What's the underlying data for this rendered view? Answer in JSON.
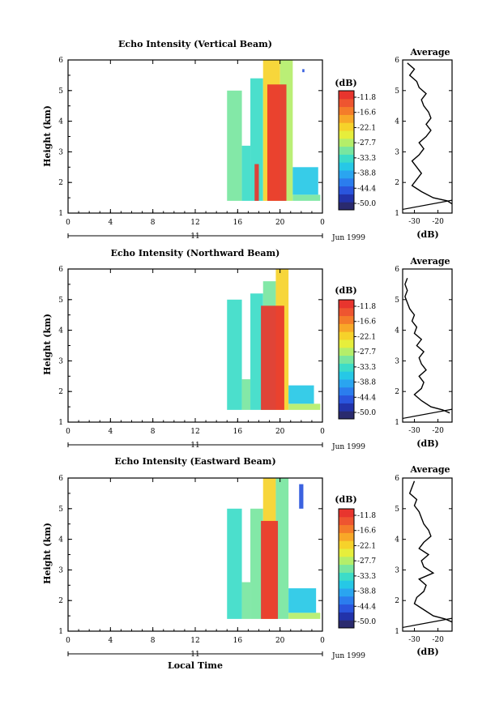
{
  "colorbar": {
    "unit_label": "(dB)",
    "ticks": [
      "-11.8",
      "-16.6",
      "-22.1",
      "-27.7",
      "-33.3",
      "-38.8",
      "-44.4",
      "-50.0"
    ],
    "colors": [
      "#2a2a6e",
      "#2233aa",
      "#2a55dd",
      "#2b7dee",
      "#2aa5f0",
      "#26c8e6",
      "#3cdcc8",
      "#78e6a0",
      "#b4ee6a",
      "#e6ee3c",
      "#f6d22a",
      "#f8a828",
      "#f47c2a",
      "#ee5530",
      "#e8352e"
    ]
  },
  "xaxis": {
    "ticks": [
      "0",
      "4",
      "8",
      "12",
      "16",
      "20",
      "0"
    ],
    "day_label": "11",
    "month_label": "Jun 1999",
    "time_label": "Local Time"
  },
  "avg_panel": {
    "title": "Average",
    "xticks": [
      "-30",
      "-20"
    ],
    "xlabel": "(dB)"
  },
  "chart_data": [
    {
      "type": "heatmap",
      "title": "Echo Intensity (Vertical Beam)",
      "ylabel": "Height (km)",
      "xlim": [
        0,
        24
      ],
      "ylim": [
        1,
        6
      ],
      "yticks": [
        "1",
        "2",
        "3",
        "4",
        "5",
        "6"
      ],
      "echo_regions": [
        {
          "x": [
            15.0,
            16.4
          ],
          "y": [
            1.4,
            5.0
          ],
          "level": 7
        },
        {
          "x": [
            16.4,
            17.2
          ],
          "y": [
            1.4,
            3.2
          ],
          "level": 6
        },
        {
          "x": [
            17.2,
            18.4
          ],
          "y": [
            1.4,
            5.4
          ],
          "level": 6
        },
        {
          "x": [
            17.6,
            18.0
          ],
          "y": [
            1.4,
            2.6
          ],
          "level": 14
        },
        {
          "x": [
            18.4,
            20.0
          ],
          "y": [
            1.4,
            6.0
          ],
          "level": 10
        },
        {
          "x": [
            20.0,
            21.2
          ],
          "y": [
            1.4,
            6.0
          ],
          "level": 8
        },
        {
          "x": [
            18.8,
            20.6
          ],
          "y": [
            1.4,
            5.2
          ],
          "level": 14
        },
        {
          "x": [
            21.2,
            23.8
          ],
          "y": [
            1.4,
            1.6
          ],
          "level": 7
        },
        {
          "x": [
            21.2,
            23.6
          ],
          "y": [
            1.6,
            2.5
          ],
          "level": 5
        },
        {
          "x": [
            22.1,
            22.3
          ],
          "y": [
            5.6,
            5.7
          ],
          "level": 2
        }
      ],
      "average": {
        "heights": [
          1.3,
          1.4,
          1.5,
          1.7,
          1.9,
          2.1,
          2.3,
          2.5,
          2.7,
          2.9,
          3.1,
          3.3,
          3.5,
          3.7,
          3.9,
          4.1,
          4.3,
          4.5,
          4.7,
          4.9,
          5.1,
          5.3,
          5.5,
          5.7,
          5.9
        ],
        "values": [
          -14,
          -16,
          -22,
          -27,
          -31,
          -29,
          -27,
          -29,
          -31,
          -28,
          -26,
          -28,
          -25,
          -23,
          -25,
          -23,
          -24,
          -26,
          -27,
          -25,
          -28,
          -29,
          -32,
          -30,
          -33
        ],
        "xlim": [
          -35,
          -14
        ]
      }
    },
    {
      "type": "heatmap",
      "title": "Echo Intensity (Northward Beam)",
      "ylabel": "Height (km)",
      "xlim": [
        0,
        24
      ],
      "ylim": [
        1,
        6
      ],
      "yticks": [
        "1",
        "2",
        "3",
        "4",
        "5",
        "6"
      ],
      "echo_regions": [
        {
          "x": [
            15.0,
            16.4
          ],
          "y": [
            1.4,
            5.0
          ],
          "level": 6
        },
        {
          "x": [
            16.4,
            17.2
          ],
          "y": [
            1.4,
            2.4
          ],
          "level": 7
        },
        {
          "x": [
            17.2,
            18.4
          ],
          "y": [
            1.4,
            5.2
          ],
          "level": 6
        },
        {
          "x": [
            18.4,
            19.6
          ],
          "y": [
            1.4,
            5.6
          ],
          "level": 7
        },
        {
          "x": [
            19.6,
            20.8
          ],
          "y": [
            1.4,
            6.0
          ],
          "level": 10
        },
        {
          "x": [
            18.2,
            20.4
          ],
          "y": [
            1.4,
            4.8
          ],
          "level": 14
        },
        {
          "x": [
            20.8,
            23.8
          ],
          "y": [
            1.4,
            1.6
          ],
          "level": 8
        },
        {
          "x": [
            20.8,
            23.2
          ],
          "y": [
            1.6,
            2.2
          ],
          "level": 5
        }
      ],
      "average": {
        "heights": [
          1.3,
          1.4,
          1.5,
          1.7,
          1.9,
          2.1,
          2.3,
          2.5,
          2.7,
          2.9,
          3.1,
          3.3,
          3.5,
          3.7,
          3.9,
          4.1,
          4.3,
          4.5,
          4.7,
          4.9,
          5.1,
          5.3,
          5.5,
          5.7
        ],
        "values": [
          -15,
          -18,
          -23,
          -27,
          -30,
          -27,
          -26,
          -28,
          -25,
          -27,
          -28,
          -26,
          -29,
          -27,
          -30,
          -29,
          -31,
          -30,
          -32,
          -33,
          -34,
          -33,
          -34,
          -33
        ],
        "xlim": [
          -35,
          -14
        ]
      }
    },
    {
      "type": "heatmap",
      "title": "Echo Intensity (Eastward Beam)",
      "ylabel": "Height (km)",
      "xlim": [
        0,
        24
      ],
      "ylim": [
        1,
        6
      ],
      "yticks": [
        "1",
        "2",
        "3",
        "4",
        "5",
        "6"
      ],
      "echo_regions": [
        {
          "x": [
            15.0,
            16.4
          ],
          "y": [
            1.4,
            5.0
          ],
          "level": 6
        },
        {
          "x": [
            16.4,
            17.2
          ],
          "y": [
            1.4,
            2.6
          ],
          "level": 7
        },
        {
          "x": [
            17.2,
            18.4
          ],
          "y": [
            1.4,
            5.0
          ],
          "level": 7
        },
        {
          "x": [
            18.4,
            19.6
          ],
          "y": [
            1.4,
            6.0
          ],
          "level": 10
        },
        {
          "x": [
            19.6,
            20.8
          ],
          "y": [
            1.4,
            6.0
          ],
          "level": 7
        },
        {
          "x": [
            18.2,
            19.8
          ],
          "y": [
            1.4,
            4.6
          ],
          "level": 14
        },
        {
          "x": [
            20.8,
            23.8
          ],
          "y": [
            1.4,
            1.6
          ],
          "level": 8
        },
        {
          "x": [
            20.8,
            23.4
          ],
          "y": [
            1.6,
            2.4
          ],
          "level": 5
        },
        {
          "x": [
            21.8,
            22.2
          ],
          "y": [
            5.0,
            5.8
          ],
          "level": 2
        }
      ],
      "average": {
        "heights": [
          1.3,
          1.4,
          1.5,
          1.7,
          1.9,
          2.1,
          2.3,
          2.5,
          2.7,
          2.9,
          3.1,
          3.3,
          3.5,
          3.7,
          3.9,
          4.1,
          4.3,
          4.5,
          4.7,
          4.9,
          5.1,
          5.3,
          5.5,
          5.7,
          5.9
        ],
        "values": [
          -14,
          -17,
          -22,
          -26,
          -30,
          -29,
          -26,
          -25,
          -28,
          -22,
          -26,
          -27,
          -24,
          -28,
          -26,
          -23,
          -24,
          -26,
          -27,
          -28,
          -30,
          -29,
          -32,
          -31,
          -30
        ],
        "xlim": [
          -35,
          -14
        ]
      }
    }
  ]
}
